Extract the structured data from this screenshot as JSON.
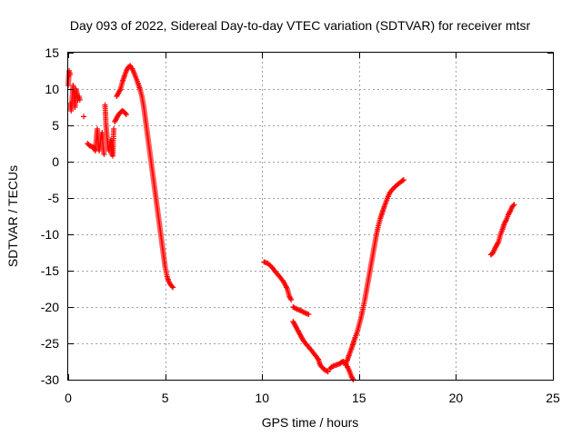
{
  "chart_data": {
    "type": "scatter",
    "title": "Day 093 of 2022, Sidereal Day-to-day VTEC variation (SDTVAR) for receiver mtsr",
    "xlabel": "GPS time / hours",
    "ylabel": "SDTVAR / TECUs",
    "xlim": [
      0,
      25
    ],
    "ylim": [
      -30,
      15
    ],
    "xticks": [
      0,
      5,
      10,
      15,
      20,
      25
    ],
    "yticks": [
      -30,
      -25,
      -20,
      -15,
      -10,
      -5,
      0,
      5,
      10,
      15
    ],
    "grid": true,
    "marker": "+",
    "colors": {
      "points": "#ff0000",
      "grid": "#a0a0a0",
      "frame": "#000000"
    },
    "series": [
      {
        "name": "SDTVAR",
        "segments": [
          [
            [
              0.0,
              10.5
            ],
            [
              0.05,
              12.5
            ],
            [
              0.1,
              12.0
            ],
            [
              0.12,
              8.0
            ],
            [
              0.15,
              7.0
            ],
            [
              0.2,
              8.5
            ],
            [
              0.25,
              10.5
            ],
            [
              0.3,
              9.5
            ],
            [
              0.35,
              7.5
            ],
            [
              0.4,
              10.0
            ],
            [
              0.45,
              9.5
            ],
            [
              0.5,
              8.5
            ],
            [
              0.55,
              9.0
            ],
            [
              0.6,
              8.5
            ]
          ],
          [
            [
              0.8,
              6.2
            ]
          ],
          [
            [
              1.0,
              2.5
            ],
            [
              1.1,
              2.2
            ],
            [
              1.3,
              2.0
            ],
            [
              1.4,
              1.5
            ],
            [
              1.45,
              3.0
            ],
            [
              1.5,
              4.5
            ],
            [
              1.55,
              2.5
            ],
            [
              1.6,
              1.5
            ],
            [
              1.7,
              3.5
            ],
            [
              1.75,
              4.0
            ],
            [
              1.8,
              2.0
            ],
            [
              1.85,
              1.0
            ],
            [
              1.9,
              7.8
            ],
            [
              1.95,
              5.0
            ],
            [
              2.0,
              3.5
            ],
            [
              2.05,
              2.0
            ],
            [
              2.1,
              1.5
            ],
            [
              2.15,
              2.5
            ],
            [
              2.2,
              3.0
            ],
            [
              2.25,
              1.0
            ],
            [
              2.3,
              0.8
            ],
            [
              2.35,
              4.5
            ]
          ],
          [
            [
              2.4,
              5.5
            ],
            [
              2.5,
              6.0
            ],
            [
              2.6,
              6.5
            ],
            [
              2.7,
              6.8
            ],
            [
              2.8,
              7.0
            ],
            [
              2.9,
              6.8
            ],
            [
              3.0,
              6.5
            ]
          ],
          [
            [
              2.5,
              9.0
            ],
            [
              2.6,
              9.5
            ],
            [
              2.7,
              10.0
            ],
            [
              2.8,
              11.0
            ],
            [
              2.9,
              11.8
            ],
            [
              3.0,
              12.5
            ],
            [
              3.1,
              13.0
            ],
            [
              3.2,
              13.2
            ],
            [
              3.3,
              12.8
            ],
            [
              3.4,
              12.2
            ],
            [
              3.5,
              11.5
            ],
            [
              3.6,
              10.8
            ],
            [
              3.7,
              10.0
            ],
            [
              3.8,
              9.0
            ],
            [
              3.9,
              7.5
            ],
            [
              4.0,
              5.5
            ],
            [
              4.1,
              3.5
            ],
            [
              4.2,
              1.5
            ],
            [
              4.3,
              -0.5
            ],
            [
              4.4,
              -2.5
            ],
            [
              4.5,
              -4.5
            ],
            [
              4.6,
              -6.5
            ],
            [
              4.7,
              -8.5
            ],
            [
              4.8,
              -10.5
            ],
            [
              4.9,
              -12.5
            ],
            [
              5.0,
              -14.5
            ],
            [
              5.1,
              -15.8
            ],
            [
              5.2,
              -16.6
            ],
            [
              5.3,
              -17.0
            ],
            [
              5.4,
              -17.3
            ]
          ],
          [
            [
              10.1,
              -13.8
            ],
            [
              10.3,
              -14.0
            ],
            [
              10.5,
              -14.5
            ],
            [
              10.7,
              -15.2
            ],
            [
              10.9,
              -15.8
            ],
            [
              11.1,
              -16.5
            ],
            [
              11.3,
              -17.5
            ],
            [
              11.4,
              -18.5
            ],
            [
              11.5,
              -19.0
            ]
          ],
          [
            [
              11.6,
              -20.0
            ],
            [
              11.8,
              -20.3
            ],
            [
              12.0,
              -20.5
            ],
            [
              12.2,
              -20.8
            ],
            [
              12.4,
              -21.0
            ]
          ],
          [
            [
              11.6,
              -22.0
            ],
            [
              11.7,
              -22.5
            ],
            [
              11.8,
              -23.0
            ],
            [
              11.9,
              -23.5
            ],
            [
              12.0,
              -24.0
            ],
            [
              12.1,
              -24.5
            ],
            [
              12.3,
              -25.2
            ],
            [
              12.5,
              -25.8
            ],
            [
              12.7,
              -26.5
            ],
            [
              12.9,
              -27.2
            ],
            [
              13.0,
              -28.0
            ],
            [
              13.1,
              -28.3
            ],
            [
              13.2,
              -28.6
            ],
            [
              13.4,
              -28.9
            ]
          ],
          [
            [
              13.5,
              -28.5
            ],
            [
              13.6,
              -28.2
            ],
            [
              13.8,
              -28.0
            ],
            [
              14.0,
              -27.8
            ],
            [
              14.1,
              -27.6
            ],
            [
              14.2,
              -27.5
            ],
            [
              14.3,
              -27.8
            ],
            [
              14.4,
              -28.2
            ],
            [
              14.5,
              -28.8
            ],
            [
              14.6,
              -29.5
            ],
            [
              14.7,
              -30.0
            ]
          ],
          [
            [
              14.3,
              -28.0
            ],
            [
              14.4,
              -27.3
            ],
            [
              14.5,
              -26.5
            ],
            [
              14.6,
              -25.8
            ],
            [
              14.7,
              -25.0
            ],
            [
              14.8,
              -24.2
            ],
            [
              14.9,
              -23.5
            ],
            [
              15.0,
              -22.5
            ],
            [
              15.1,
              -21.5
            ],
            [
              15.2,
              -20.3
            ],
            [
              15.3,
              -19.0
            ],
            [
              15.4,
              -17.5
            ],
            [
              15.5,
              -16.0
            ],
            [
              15.6,
              -14.5
            ],
            [
              15.7,
              -13.0
            ],
            [
              15.8,
              -11.5
            ],
            [
              15.9,
              -10.0
            ],
            [
              16.0,
              -8.8
            ],
            [
              16.1,
              -7.8
            ],
            [
              16.2,
              -7.0
            ],
            [
              16.3,
              -6.2
            ],
            [
              16.4,
              -5.5
            ],
            [
              16.5,
              -4.8
            ],
            [
              16.6,
              -4.2
            ],
            [
              16.8,
              -3.6
            ],
            [
              17.0,
              -3.1
            ],
            [
              17.2,
              -2.7
            ],
            [
              17.3,
              -2.5
            ]
          ],
          [
            [
              21.8,
              -12.8
            ],
            [
              21.9,
              -12.6
            ],
            [
              22.0,
              -12.0
            ],
            [
              22.1,
              -11.5
            ],
            [
              22.2,
              -11.0
            ],
            [
              22.3,
              -10.0
            ],
            [
              22.4,
              -9.3
            ],
            [
              22.5,
              -8.5
            ],
            [
              22.6,
              -8.0
            ],
            [
              22.7,
              -7.3
            ],
            [
              22.8,
              -6.8
            ],
            [
              22.9,
              -6.2
            ],
            [
              23.0,
              -5.9
            ]
          ]
        ]
      }
    ]
  }
}
